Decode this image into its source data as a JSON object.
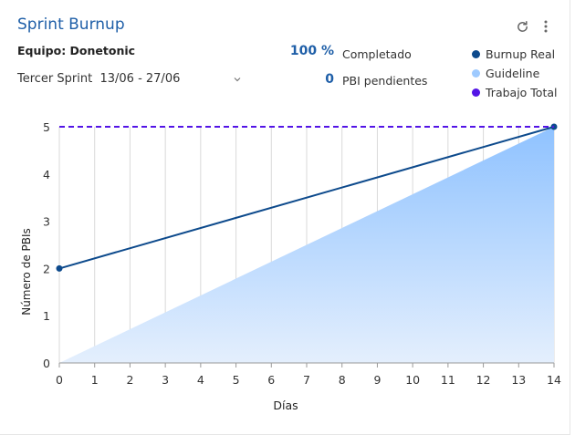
{
  "card": {
    "title": "Sprint Burnup",
    "team_label": "Equipo: Donetonic",
    "sprint_select": "Tercer Sprint  13/06 - 27/06",
    "icons": {
      "refresh": "refresh-icon",
      "more": "more-vertical-icon",
      "dropdown": "chevron-down-icon"
    }
  },
  "stats": {
    "completed_value": "100 %",
    "completed_label": "Completado",
    "pending_value": "0",
    "pending_label": "PBI pendientes"
  },
  "colors": {
    "burnup": "#0d4a8c",
    "guideline": "#9ecaff",
    "total": "#5314e6",
    "title": "#1f5fa8"
  },
  "chart_data": {
    "type": "line",
    "xlabel": "Días",
    "ylabel": "Número de PBIs",
    "xlim": [
      0,
      14
    ],
    "ylim": [
      0,
      5
    ],
    "x_ticks": [
      "0",
      "1",
      "2",
      "3",
      "4",
      "5",
      "6",
      "7",
      "8",
      "9",
      "10",
      "11",
      "12",
      "13",
      "14"
    ],
    "y_ticks": [
      "0",
      "1",
      "2",
      "3",
      "4",
      "5"
    ],
    "grid": "vertical",
    "legend_position": "top-right",
    "series": [
      {
        "name": "Burnup Real",
        "type": "line",
        "color": "#0d4a8c",
        "points": [
          [
            0,
            2
          ],
          [
            14,
            5
          ]
        ]
      },
      {
        "name": "Guideline",
        "type": "area",
        "color": "#9ecaff",
        "points": [
          [
            0,
            0
          ],
          [
            14,
            5
          ]
        ]
      },
      {
        "name": "Trabajo Total",
        "type": "dashed-line",
        "color": "#5314e6",
        "points": [
          [
            0,
            5
          ],
          [
            14,
            5
          ]
        ]
      }
    ]
  }
}
